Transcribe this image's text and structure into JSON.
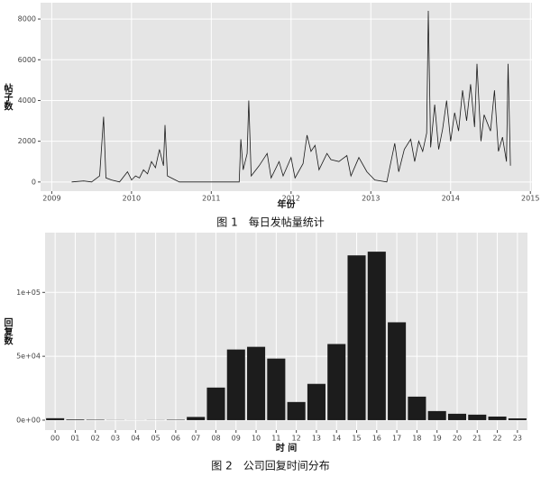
{
  "chart_data": [
    {
      "type": "line",
      "caption": "图 1　每日发帖量统计",
      "x_label": "年份",
      "y_label": "帖子数",
      "color": "#1a1a1a",
      "x": [
        2009.25,
        2009.4,
        2009.5,
        2009.6,
        2009.65,
        2009.68,
        2009.75,
        2009.85,
        2009.95,
        2010.0,
        2010.05,
        2010.1,
        2010.15,
        2010.2,
        2010.25,
        2010.3,
        2010.35,
        2010.4,
        2010.42,
        2010.45,
        2010.55,
        2010.6,
        2011.0,
        2011.35,
        2011.37,
        2011.4,
        2011.45,
        2011.47,
        2011.5,
        2011.6,
        2011.7,
        2011.75,
        2011.85,
        2011.9,
        2012.0,
        2012.05,
        2012.15,
        2012.2,
        2012.25,
        2012.3,
        2012.35,
        2012.45,
        2012.5,
        2012.6,
        2012.7,
        2012.75,
        2012.85,
        2012.95,
        2013.05,
        2013.2,
        2013.3,
        2013.35,
        2013.42,
        2013.5,
        2013.55,
        2013.6,
        2013.65,
        2013.7,
        2013.72,
        2013.75,
        2013.8,
        2013.85,
        2013.9,
        2013.95,
        2014.0,
        2014.05,
        2014.1,
        2014.15,
        2014.2,
        2014.25,
        2014.3,
        2014.33,
        2014.38,
        2014.42,
        2014.5,
        2014.55,
        2014.6,
        2014.65,
        2014.7,
        2014.72,
        2014.75
      ],
      "values": [
        0,
        50,
        0,
        300,
        3200,
        200,
        100,
        0,
        500,
        100,
        300,
        200,
        600,
        400,
        1000,
        700,
        1600,
        800,
        2800,
        300,
        100,
        0,
        0,
        0,
        2100,
        600,
        1400,
        4000,
        300,
        800,
        1400,
        200,
        1000,
        300,
        1200,
        200,
        900,
        2300,
        1500,
        1800,
        600,
        1400,
        1100,
        1000,
        1300,
        300,
        1200,
        500,
        100,
        0,
        1900,
        500,
        1600,
        2100,
        1000,
        2000,
        1500,
        2400,
        8400,
        1700,
        3800,
        1600,
        2600,
        4000,
        2000,
        3400,
        2500,
        4500,
        3000,
        4800,
        2700,
        5800,
        2000,
        3300,
        2500,
        4500,
        1500,
        2200,
        1000,
        5800,
        800
      ],
      "xlim": [
        2008.86,
        2015.02
      ],
      "xticks": [
        2009,
        2010,
        2011,
        2012,
        2013,
        2014,
        2015
      ],
      "ylim": [
        -450,
        8800
      ],
      "yticks": [
        0,
        2000,
        4000,
        6000,
        8000
      ],
      "grid": true
    },
    {
      "type": "bar",
      "caption": "图 2　公司回复时间分布",
      "x_label": "时 间",
      "y_label": "回复数",
      "color": "#1c1c1c",
      "categories": [
        "00",
        "01",
        "02",
        "03",
        "04",
        "05",
        "06",
        "07",
        "08",
        "09",
        "10",
        "11",
        "12",
        "13",
        "14",
        "15",
        "16",
        "17",
        "18",
        "19",
        "20",
        "21",
        "22",
        "23"
      ],
      "values": [
        1500,
        500,
        300,
        100,
        50,
        100,
        300,
        2500,
        25500,
        55300,
        57400,
        48200,
        14200,
        28400,
        59600,
        129000,
        131900,
        76600,
        18400,
        7100,
        5000,
        4300,
        2800,
        1400
      ],
      "ylim": [
        -7800,
        146800
      ],
      "yticks": [
        {
          "value": 0,
          "label": "0e+00"
        },
        {
          "value": 50000,
          "label": "5e+04"
        },
        {
          "value": 100000,
          "label": "1e+05"
        }
      ],
      "grid": true
    }
  ]
}
